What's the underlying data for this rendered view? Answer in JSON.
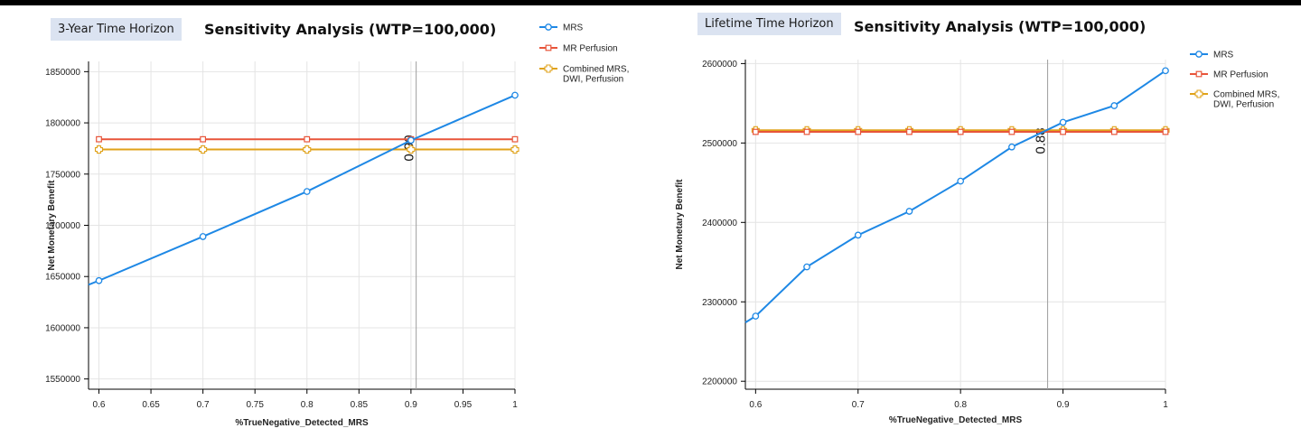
{
  "chart_data": [
    {
      "type": "line",
      "badge": "3-Year Time Horizon",
      "title": "Sensitivity Analysis (WTP=100,000)",
      "xlabel": "%TrueNegative_Detected_MRS",
      "ylabel": "Net Monetary Benefit",
      "xlim": [
        0.59,
        1.0
      ],
      "ylim": [
        1540000,
        1860000
      ],
      "x_ticks": [
        "0.6",
        "0.65",
        "0.7",
        "0.75",
        "0.8",
        "0.85",
        "0.9",
        "0.95",
        "1"
      ],
      "x_tick_values": [
        0.6,
        0.65,
        0.7,
        0.75,
        0.8,
        0.85,
        0.9,
        0.95,
        1.0
      ],
      "y_ticks": [
        "1550000",
        "1600000",
        "1650000",
        "1700000",
        "1750000",
        "1800000",
        "1850000"
      ],
      "y_tick_values": [
        1550000,
        1600000,
        1650000,
        1700000,
        1750000,
        1800000,
        1850000
      ],
      "threshold": {
        "x": 0.905,
        "label": "0.90"
      },
      "legend_position": "top-right",
      "series": [
        {
          "name": "MRS",
          "color": "#1e88e5",
          "marker": "circle",
          "x": [
            0.6,
            0.7,
            0.8,
            0.9,
            1.0
          ],
          "y": [
            1646000,
            1689000,
            1733000,
            1783000,
            1827000
          ],
          "extend_left": [
            0.59,
            1642000
          ]
        },
        {
          "name": "MR Perfusion",
          "color": "#e8553a",
          "marker": "square",
          "x": [
            0.6,
            0.7,
            0.8,
            0.9,
            1.0
          ],
          "y": [
            1784000,
            1784000,
            1784000,
            1784000,
            1784000
          ]
        },
        {
          "name": "Combined MRS, DWI, Perfusion",
          "label_lines": [
            "Combined MRS,",
            "DWI, Perfusion"
          ],
          "color": "#e0a21a",
          "marker": "plus",
          "x": [
            0.6,
            0.7,
            0.8,
            0.9,
            1.0
          ],
          "y": [
            1774000,
            1774000,
            1774000,
            1774000,
            1774000
          ]
        }
      ]
    },
    {
      "type": "line",
      "badge": "Lifetime Time Horizon",
      "title": "Sensitivity Analysis (WTP=100,000)",
      "xlabel": "%TrueNegative_Detected_MRS",
      "ylabel": "Net Monetary Benefit",
      "xlim": [
        0.59,
        1.0
      ],
      "ylim": [
        2190000,
        2605000
      ],
      "x_ticks": [
        "0.6",
        "0.7",
        "0.8",
        "0.9",
        "1"
      ],
      "x_tick_values": [
        0.6,
        0.7,
        0.8,
        0.9,
        1.0
      ],
      "y_ticks": [
        "2200000",
        "2300000",
        "2400000",
        "2500000",
        "2600000"
      ],
      "y_tick_values": [
        2200000,
        2300000,
        2400000,
        2500000,
        2600000
      ],
      "threshold": {
        "x": 0.885,
        "label": "0.88"
      },
      "legend_position": "top-right",
      "series": [
        {
          "name": "MRS",
          "color": "#1e88e5",
          "marker": "circle",
          "x": [
            0.6,
            0.65,
            0.7,
            0.75,
            0.8,
            0.85,
            0.9,
            0.95,
            1.0
          ],
          "y": [
            2282000,
            2344000,
            2384000,
            2414000,
            2452000,
            2495000,
            2526000,
            2547000,
            2591000
          ],
          "extend_left": [
            0.59,
            2274000
          ]
        },
        {
          "name": "MR Perfusion",
          "color": "#e8553a",
          "marker": "square",
          "x": [
            0.6,
            0.65,
            0.7,
            0.75,
            0.8,
            0.85,
            0.9,
            0.95,
            1.0
          ],
          "y": [
            2514000,
            2514000,
            2514000,
            2514000,
            2514000,
            2514000,
            2514000,
            2514000,
            2514000
          ]
        },
        {
          "name": "Combined MRS, DWI, Perfusion",
          "label_lines": [
            "Combined MRS,",
            "DWI, Perfusion"
          ],
          "color": "#e0a21a",
          "marker": "plus",
          "x": [
            0.6,
            0.65,
            0.7,
            0.75,
            0.8,
            0.85,
            0.9,
            0.95,
            1.0
          ],
          "y": [
            2516000,
            2516000,
            2516000,
            2516000,
            2516000,
            2516000,
            2516000,
            2516000,
            2516000
          ]
        }
      ]
    }
  ]
}
